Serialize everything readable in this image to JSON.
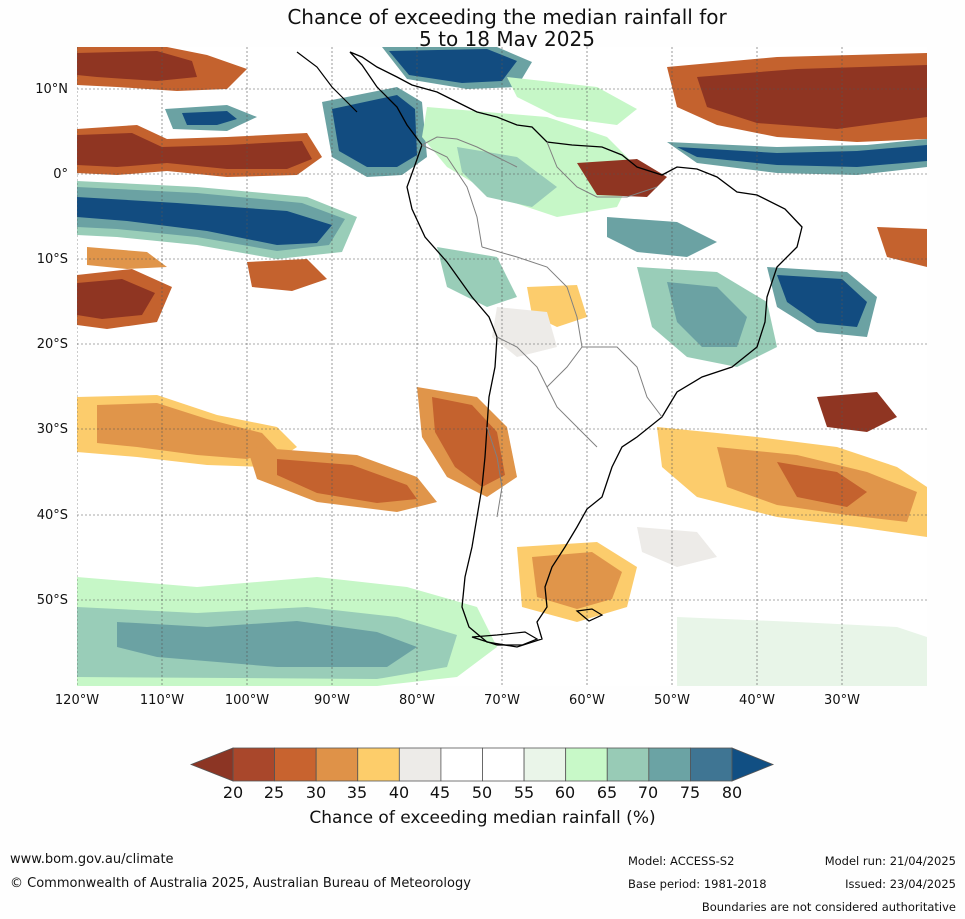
{
  "title": {
    "line1": "Chance of exceeding the median rainfall for",
    "line2": "5 to 18 May 2025"
  },
  "map": {
    "region": "South America",
    "lat_labels": [
      "10°N",
      "0°",
      "10°S",
      "20°S",
      "30°S",
      "40°S",
      "50°S"
    ],
    "lon_labels": [
      "120°W",
      "110°W",
      "100°W",
      "90°W",
      "80°W",
      "70°W",
      "60°W",
      "50°W",
      "40°W",
      "30°W"
    ],
    "colors": {
      "very_dry": "#8f3522",
      "dry": "#c4622e",
      "moderately_dry": "#e0954a",
      "slightly_dry": "#fccc6c",
      "neutral_grey": "#edebe8",
      "neutral_white": "#ffffff",
      "slightly_wet": "#e8f5e8",
      "moderately_wet": "#c6f7c7",
      "wet": "#99cdb8",
      "very_wet": "#6ba2a3",
      "extremely_wet": "#3f7392",
      "max_wet": "#124c80",
      "coast": "#000000",
      "border": "#808080"
    }
  },
  "colorbar": {
    "ticks": [
      "20",
      "25",
      "30",
      "35",
      "40",
      "45",
      "50",
      "55",
      "60",
      "65",
      "70",
      "75",
      "80"
    ],
    "colors": [
      "#a9472b",
      "#c8632f",
      "#df9248",
      "#fdcd6a",
      "#edebe8",
      "#ffffff",
      "#ffffff",
      "#eaf5e9",
      "#c8f9c8",
      "#98cbb6",
      "#6ba3a4",
      "#3f7593"
    ],
    "low_color": "#8c3524",
    "high_color": "#114f83",
    "label": "Chance of exceeding median rainfall (%)"
  },
  "footer": {
    "website": "www.bom.gov.au/climate",
    "copyright": "© Commonwealth of Australia 2025, Australian Bureau of Meteorology",
    "model": "Model: ACCESS-S2",
    "base_period": "Base period: 1981-2018",
    "model_run": "Model run: 21/04/2025",
    "issued": "Issued: 23/04/2025",
    "disclaimer": "Boundaries are not considered authoritative"
  }
}
